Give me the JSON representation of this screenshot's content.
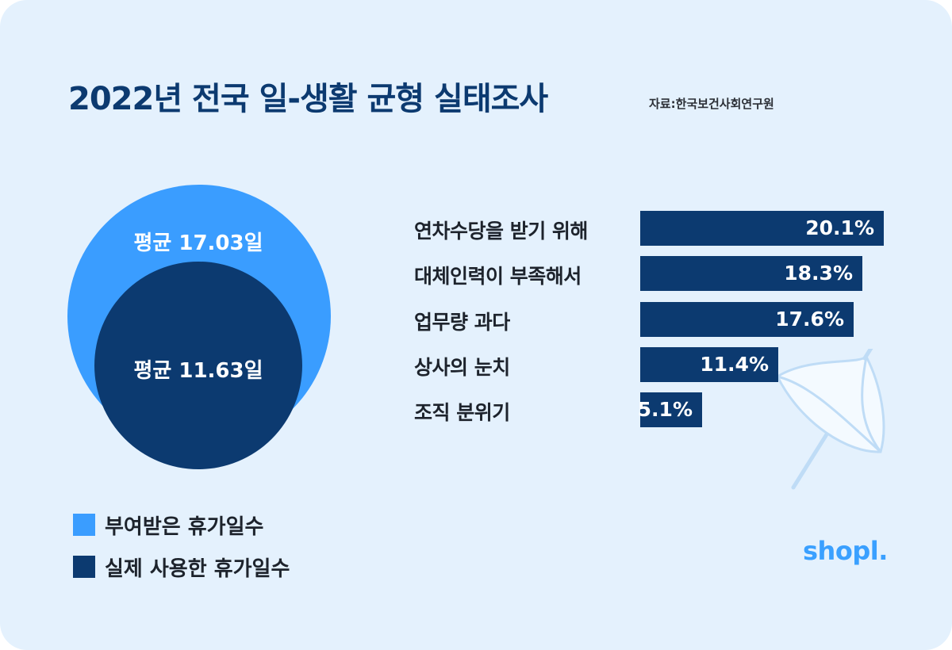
{
  "header": {
    "title": "2022년 전국 일-생활 균형 실태조사",
    "source": "자료:한국보건사회연구원"
  },
  "colors": {
    "background": "#e4f1fd",
    "light_blue": "#3a9dff",
    "navy": "#0c3a70",
    "brand": "#3aa0ff"
  },
  "chart_data": [
    {
      "type": "bubble",
      "items": [
        {
          "label": "평균 17.03일",
          "value": 17.03,
          "legend": "부여받은 휴가일수"
        },
        {
          "label": "평균 11.63일",
          "value": 11.63,
          "legend": "실제 사용한 휴가일수"
        }
      ]
    },
    {
      "type": "bar",
      "orientation": "horizontal",
      "categories": [
        "연차수당을 받기 위해",
        "대체인력이 부족해서",
        "업무량 과다",
        "상사의 눈치",
        "조직 분위기"
      ],
      "values": [
        20.1,
        18.3,
        17.6,
        11.4,
        5.1
      ],
      "value_labels": [
        "20.1%",
        "18.3%",
        "17.6%",
        "11.4%",
        "5.1%"
      ]
    }
  ],
  "legend": [
    {
      "label": "부여받은 휴가일수",
      "color": "#3a9dff"
    },
    {
      "label": "실제 사용한 휴가일수",
      "color": "#0c3a70"
    }
  ],
  "decoration": {
    "icon": "umbrella-icon"
  },
  "brand": {
    "logo": "shopl."
  }
}
